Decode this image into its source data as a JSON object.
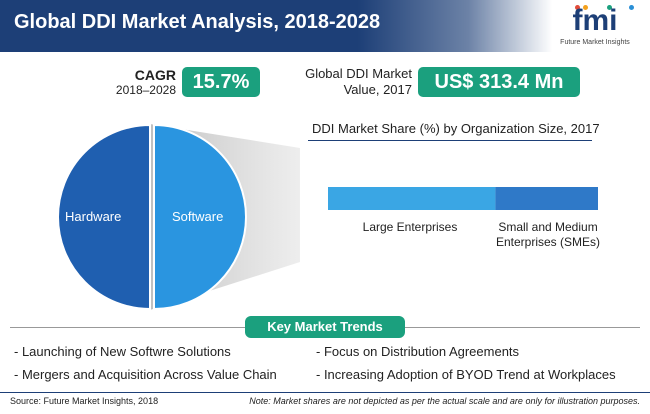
{
  "header": {
    "title": "Global DDI Market Analysis, 2018-2028"
  },
  "logo": {
    "text": "fmi",
    "subtitle": "Future Market Insights",
    "dot_colors": [
      "#e24b3a",
      "#f4a11d",
      "#1ba07e",
      "#2a8fd6"
    ]
  },
  "cagr": {
    "label": "CAGR",
    "years": "2018–2028",
    "value": "15.7%"
  },
  "market_value": {
    "label_line1": "Global DDI Market",
    "label_line2": "Value, 2017",
    "value": "US$ 313.4 Mn"
  },
  "colors": {
    "navy": "#1d3f77",
    "green": "#1ba07e",
    "light_blue": "#3aa6e4",
    "mid_blue": "#2f79c8",
    "pie_dark": "#1f5fb0",
    "pie_light": "#2a95e0"
  },
  "chart_data": [
    {
      "type": "pie",
      "slices": [
        {
          "label": "Hardware",
          "value": 50
        },
        {
          "label": "Software",
          "value": 50
        }
      ]
    },
    {
      "type": "bar",
      "title": "DDI Market Share (%) by Organization Size, 2017",
      "orientation": "horizontal-stacked",
      "segments": [
        {
          "label": "Large Enterprises",
          "value": 62
        },
        {
          "label": "Small and Medium Enterprises (SMEs)",
          "value": 38
        }
      ]
    }
  ],
  "key_trends": {
    "heading": "Key Market Trends",
    "items": [
      "- Launching of New Softwre Solutions",
      "- Focus on Distribution Agreements",
      "- Mergers and Acquisition Across Value Chain",
      "- Increasing Adoption of BYOD Trend at Workplaces"
    ]
  },
  "footer": {
    "source": "Source: Future Market Insights, 2018",
    "note": "Note: Market shares are not depicted as per the actual scale and are only for illustration purposes."
  }
}
